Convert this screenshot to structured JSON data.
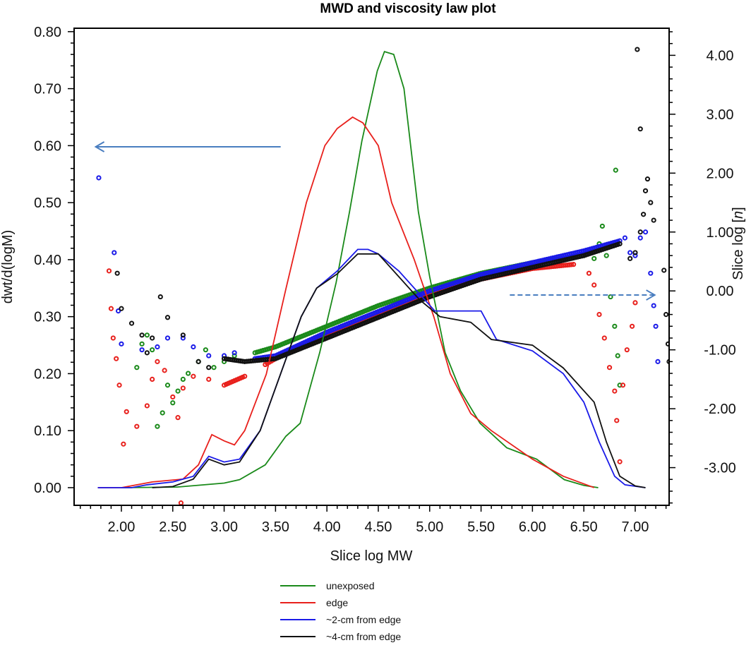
{
  "chart_data": {
    "type": "line",
    "title": "MWD and viscosity law plot",
    "xlabel": "Slice log MW",
    "ylabel_left": "dwt/d(logM)",
    "ylabel_right_prefix": "Slice log [",
    "ylabel_right_symbol": "n",
    "ylabel_right_suffix": "]",
    "xlim": [
      1.54,
      7.33
    ],
    "ylim_left": [
      -0.031,
      0.806
    ],
    "ylim_right": [
      -3.64,
      4.46
    ],
    "grid": false,
    "legend_position": "bottom",
    "x_ticks": [
      "2.00",
      "2.50",
      "3.00",
      "3.50",
      "4.00",
      "4.50",
      "5.00",
      "5.50",
      "6.00",
      "6.50",
      "7.00"
    ],
    "y_left_ticks": [
      "0.00",
      "0.10",
      "0.20",
      "0.30",
      "0.40",
      "0.50",
      "0.60",
      "0.70",
      "0.80"
    ],
    "y_right_ticks": [
      "-3.00",
      "-2.00",
      "-1.00",
      "0.00",
      "1.00",
      "2.00",
      "3.00",
      "4.00"
    ],
    "series": [
      {
        "name": "unexposed",
        "color": "#1a8a1a",
        "mwd": [
          [
            2.0,
            0
          ],
          [
            2.54,
            0.001
          ],
          [
            3.0,
            0.008
          ],
          [
            3.15,
            0.014
          ],
          [
            3.4,
            0.04
          ],
          [
            3.6,
            0.09
          ],
          [
            3.74,
            0.113
          ],
          [
            3.93,
            0.237
          ],
          [
            4.09,
            0.36
          ],
          [
            4.22,
            0.484
          ],
          [
            4.34,
            0.608
          ],
          [
            4.49,
            0.731
          ],
          [
            4.56,
            0.765
          ],
          [
            4.65,
            0.76
          ],
          [
            4.75,
            0.7
          ],
          [
            4.89,
            0.484
          ],
          [
            5.0,
            0.37
          ],
          [
            5.15,
            0.237
          ],
          [
            5.3,
            0.17
          ],
          [
            5.49,
            0.113
          ],
          [
            5.75,
            0.07
          ],
          [
            6.04,
            0.05
          ],
          [
            6.31,
            0.014
          ],
          [
            6.5,
            0.004
          ],
          [
            6.64,
            0
          ]
        ],
        "viscosity": [
          [
            2.15,
            -1.3
          ],
          [
            2.2,
            -0.9
          ],
          [
            2.25,
            -0.75
          ],
          [
            2.3,
            -1.0
          ],
          [
            2.35,
            -2.3
          ],
          [
            2.4,
            -2.07
          ],
          [
            2.45,
            -1.6
          ],
          [
            2.5,
            -1.9
          ],
          [
            2.55,
            -1.7
          ],
          [
            2.6,
            -1.5
          ],
          [
            2.65,
            -1.4
          ],
          [
            2.75,
            -1.2
          ],
          [
            2.82,
            -1.0
          ],
          [
            2.9,
            -1.3
          ],
          [
            3.0,
            -1.2
          ],
          [
            3.1,
            -1.1
          ],
          [
            3.3,
            -1.05
          ],
          [
            3.5,
            -0.95
          ],
          [
            4.0,
            -0.6
          ],
          [
            4.5,
            -0.25
          ],
          [
            5.0,
            0.05
          ],
          [
            5.5,
            0.3
          ],
          [
            6.0,
            0.48
          ],
          [
            6.5,
            0.6
          ],
          [
            6.6,
            0.55
          ],
          [
            6.65,
            0.8
          ],
          [
            6.68,
            1.1
          ],
          [
            6.72,
            0.6
          ],
          [
            6.76,
            -0.1
          ],
          [
            6.8,
            -0.6
          ],
          [
            6.83,
            -1.1
          ],
          [
            6.85,
            -1.6
          ],
          [
            6.81,
            2.05
          ]
        ]
      },
      {
        "name": "edge",
        "color": "#e8201c",
        "mwd": [
          [
            1.77,
            0
          ],
          [
            2.0,
            0
          ],
          [
            2.3,
            0.01
          ],
          [
            2.6,
            0.015
          ],
          [
            2.75,
            0.04
          ],
          [
            2.88,
            0.093
          ],
          [
            3.0,
            0.082
          ],
          [
            3.1,
            0.075
          ],
          [
            3.2,
            0.1
          ],
          [
            3.41,
            0.199
          ],
          [
            3.6,
            0.348
          ],
          [
            3.8,
            0.5
          ],
          [
            3.98,
            0.6
          ],
          [
            4.1,
            0.63
          ],
          [
            4.25,
            0.65
          ],
          [
            4.35,
            0.64
          ],
          [
            4.5,
            0.6
          ],
          [
            4.63,
            0.5
          ],
          [
            4.85,
            0.4
          ],
          [
            5.04,
            0.3
          ],
          [
            5.2,
            0.2
          ],
          [
            5.4,
            0.13
          ],
          [
            5.6,
            0.1
          ],
          [
            6.0,
            0.05
          ],
          [
            6.3,
            0.02
          ],
          [
            6.6,
            0
          ]
        ],
        "viscosity": [
          [
            1.88,
            0.34
          ],
          [
            1.9,
            -0.3
          ],
          [
            1.92,
            -0.8
          ],
          [
            1.95,
            -1.15
          ],
          [
            1.98,
            -1.6
          ],
          [
            2.02,
            -2.6
          ],
          [
            2.05,
            -2.05
          ],
          [
            2.15,
            -2.3
          ],
          [
            2.25,
            -1.95
          ],
          [
            2.3,
            -1.5
          ],
          [
            2.35,
            -1.2
          ],
          [
            2.42,
            -1.35
          ],
          [
            2.5,
            -1.8
          ],
          [
            2.55,
            -2.15
          ],
          [
            2.58,
            -3.6
          ],
          [
            2.6,
            -1.65
          ],
          [
            2.7,
            -1.45
          ],
          [
            2.85,
            -1.5
          ],
          [
            3.0,
            -1.6
          ],
          [
            3.2,
            -1.45
          ],
          [
            3.4,
            -1.25
          ],
          [
            3.6,
            -1.05
          ],
          [
            4.0,
            -0.75
          ],
          [
            4.5,
            -0.4
          ],
          [
            5.0,
            -0.05
          ],
          [
            5.5,
            0.2
          ],
          [
            6.0,
            0.38
          ],
          [
            6.4,
            0.45
          ],
          [
            6.55,
            0.3
          ],
          [
            6.6,
            0.1
          ],
          [
            6.65,
            -0.4
          ],
          [
            6.7,
            -0.8
          ],
          [
            6.75,
            -1.3
          ],
          [
            6.8,
            -1.7
          ],
          [
            6.82,
            -2.2
          ],
          [
            6.85,
            -2.9
          ],
          [
            6.88,
            -1.6
          ],
          [
            6.92,
            -1.0
          ],
          [
            6.97,
            -0.6
          ],
          [
            7.0,
            -0.2
          ]
        ]
      },
      {
        "name": "~2-cm from edge",
        "color": "#1a1ae8",
        "mwd": [
          [
            1.77,
            0
          ],
          [
            2.1,
            0
          ],
          [
            2.25,
            0.005
          ],
          [
            2.5,
            0.01
          ],
          [
            2.7,
            0.02
          ],
          [
            2.85,
            0.055
          ],
          [
            3.0,
            0.045
          ],
          [
            3.15,
            0.05
          ],
          [
            3.35,
            0.1
          ],
          [
            3.55,
            0.2
          ],
          [
            3.75,
            0.3
          ],
          [
            3.9,
            0.35
          ],
          [
            4.1,
            0.38
          ],
          [
            4.3,
            0.418
          ],
          [
            4.4,
            0.418
          ],
          [
            4.5,
            0.41
          ],
          [
            4.7,
            0.38
          ],
          [
            4.9,
            0.34
          ],
          [
            5.05,
            0.31
          ],
          [
            5.5,
            0.31
          ],
          [
            5.65,
            0.26
          ],
          [
            6.0,
            0.24
          ],
          [
            6.3,
            0.2
          ],
          [
            6.5,
            0.15
          ],
          [
            6.65,
            0.08
          ],
          [
            6.8,
            0.02
          ],
          [
            6.9,
            0.005
          ],
          [
            7.1,
            0
          ]
        ],
        "viscosity": [
          [
            1.78,
            1.92
          ],
          [
            1.93,
            0.65
          ],
          [
            1.97,
            -0.34
          ],
          [
            2.0,
            -0.9
          ],
          [
            2.2,
            -1.0
          ],
          [
            2.35,
            -0.95
          ],
          [
            2.45,
            -0.8
          ],
          [
            2.6,
            -0.8
          ],
          [
            2.7,
            -0.95
          ],
          [
            2.85,
            -1.1
          ],
          [
            3.0,
            -1.1
          ],
          [
            3.1,
            -1.05
          ],
          [
            3.3,
            -1.15
          ],
          [
            3.5,
            -1.1
          ],
          [
            4.0,
            -0.7
          ],
          [
            4.5,
            -0.35
          ],
          [
            5.0,
            0.0
          ],
          [
            5.5,
            0.28
          ],
          [
            6.0,
            0.48
          ],
          [
            6.5,
            0.68
          ],
          [
            6.85,
            0.85
          ],
          [
            6.9,
            0.9
          ],
          [
            6.95,
            0.65
          ],
          [
            7.0,
            0.6
          ],
          [
            7.05,
            0.9
          ],
          [
            7.1,
            1.0
          ],
          [
            7.15,
            0.3
          ],
          [
            7.18,
            -0.25
          ],
          [
            7.2,
            -0.6
          ],
          [
            7.22,
            -1.2
          ]
        ]
      },
      {
        "name": "~4-cm from edge",
        "color": "#111111",
        "mwd": [
          [
            2.3,
            0
          ],
          [
            2.5,
            0.002
          ],
          [
            2.7,
            0.015
          ],
          [
            2.85,
            0.05
          ],
          [
            3.0,
            0.04
          ],
          [
            3.15,
            0.045
          ],
          [
            3.35,
            0.1
          ],
          [
            3.55,
            0.2
          ],
          [
            3.75,
            0.3
          ],
          [
            3.9,
            0.35
          ],
          [
            4.1,
            0.375
          ],
          [
            4.3,
            0.41
          ],
          [
            4.5,
            0.41
          ],
          [
            4.7,
            0.37
          ],
          [
            4.9,
            0.33
          ],
          [
            5.1,
            0.3
          ],
          [
            5.4,
            0.29
          ],
          [
            5.6,
            0.26
          ],
          [
            6.0,
            0.25
          ],
          [
            6.3,
            0.21
          ],
          [
            6.6,
            0.15
          ],
          [
            6.72,
            0.08
          ],
          [
            6.85,
            0.02
          ],
          [
            7.0,
            0.003
          ],
          [
            7.1,
            0
          ]
        ],
        "viscosity": [
          [
            1.96,
            0.3
          ],
          [
            2.0,
            -0.3
          ],
          [
            2.1,
            -0.55
          ],
          [
            2.2,
            -0.75
          ],
          [
            2.25,
            -1.05
          ],
          [
            2.3,
            -0.8
          ],
          [
            2.38,
            -0.1
          ],
          [
            2.45,
            -0.45
          ],
          [
            2.6,
            -0.75
          ],
          [
            2.75,
            -1.2
          ],
          [
            2.85,
            -1.3
          ],
          [
            3.0,
            -1.15
          ],
          [
            3.2,
            -1.2
          ],
          [
            3.5,
            -1.15
          ],
          [
            4.0,
            -0.8
          ],
          [
            4.5,
            -0.45
          ],
          [
            5.0,
            -0.1
          ],
          [
            5.5,
            0.2
          ],
          [
            6.0,
            0.4
          ],
          [
            6.5,
            0.6
          ],
          [
            6.85,
            0.8
          ],
          [
            6.95,
            0.55
          ],
          [
            7.0,
            0.65
          ],
          [
            7.05,
            1.0
          ],
          [
            7.08,
            1.3
          ],
          [
            7.1,
            1.7
          ],
          [
            7.12,
            1.9
          ],
          [
            7.15,
            1.5
          ],
          [
            7.18,
            1.2
          ],
          [
            7.02,
            4.1
          ],
          [
            7.05,
            2.75
          ],
          [
            7.28,
            0.35
          ],
          [
            7.3,
            -0.4
          ],
          [
            7.32,
            -0.9
          ],
          [
            7.33,
            -1.2
          ]
        ]
      }
    ],
    "annotations": [
      {
        "type": "arrow",
        "axis": "left",
        "style": "solid",
        "color": "#4a7ec0",
        "from": [
          3.55,
          0.598
        ],
        "to": [
          1.75,
          0.598
        ]
      },
      {
        "type": "arrow",
        "axis": "right",
        "style": "dashed",
        "color": "#4a7ec0",
        "from": [
          5.78,
          -0.07
        ],
        "to": [
          7.19,
          -0.07
        ]
      }
    ]
  }
}
